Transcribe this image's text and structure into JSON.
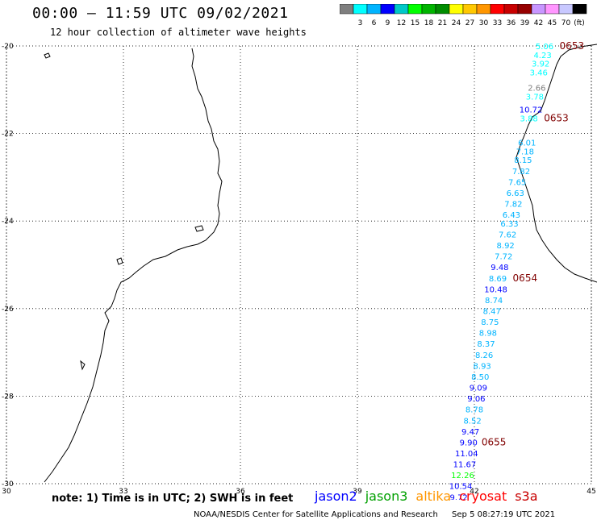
{
  "header": {
    "title": "00:00 – 11:59 UTC 09/02/2021",
    "subtitle": "12 hour collection of altimeter wave heights"
  },
  "colorbar": {
    "colors": [
      "#7f7f7f",
      "#00ffff",
      "#00b4ff",
      "#0000ff",
      "#00c8c8",
      "#00ff00",
      "#00b400",
      "#008c00",
      "#ffff00",
      "#ffc800",
      "#ff9600",
      "#ff0000",
      "#c80000",
      "#960000",
      "#c896ff",
      "#ff96ff",
      "#c8c8ff",
      "#000000"
    ],
    "labels": [
      "3",
      "6",
      "9",
      "12",
      "15",
      "18",
      "21",
      "24",
      "27",
      "30",
      "33",
      "36",
      "39",
      "42",
      "45",
      "70"
    ],
    "unit": "(ft)"
  },
  "chart_data": {
    "type": "scatter",
    "title": "00:00 – 11:59 UTC 09/02/2021",
    "subtitle": "12 hour collection of altimeter wave heights",
    "xlim": [
      30,
      45
    ],
    "ylim": [
      -30,
      -20
    ],
    "xticks": [
      "30",
      "33",
      "36",
      "39",
      "42",
      "45"
    ],
    "yticks": [
      "-20",
      "-22",
      "-24",
      "-26",
      "-28",
      "-30"
    ],
    "grid": true,
    "points": [
      {
        "lat": -20.0,
        "lon": 43.8,
        "v": "5.06",
        "c": "#00ffff"
      },
      {
        "lat": -20.2,
        "lon": 43.75,
        "v": "4.23",
        "c": "#00ffff"
      },
      {
        "lat": -20.4,
        "lon": 43.7,
        "v": "3.92",
        "c": "#00ffff"
      },
      {
        "lat": -20.6,
        "lon": 43.65,
        "v": "3.46",
        "c": "#00ffff"
      },
      {
        "lat": -20.95,
        "lon": 43.6,
        "v": "2.66",
        "c": "#7f7f7f"
      },
      {
        "lat": -21.15,
        "lon": 43.55,
        "v": "3.78",
        "c": "#00ffff"
      },
      {
        "lat": -21.45,
        "lon": 43.45,
        "v": "10.72",
        "c": "#0000ff"
      },
      {
        "lat": -21.65,
        "lon": 43.4,
        "v": "3.88",
        "c": "#00ffff"
      },
      {
        "lat": -22.2,
        "lon": 43.35,
        "v": "6.01",
        "c": "#00b4ff"
      },
      {
        "lat": -22.4,
        "lon": 43.3,
        "v": "7.18",
        "c": "#00b4ff"
      },
      {
        "lat": -22.6,
        "lon": 43.25,
        "v": "8.15",
        "c": "#00b4ff"
      },
      {
        "lat": -22.85,
        "lon": 43.2,
        "v": "7.82",
        "c": "#00b4ff"
      },
      {
        "lat": -23.1,
        "lon": 43.1,
        "v": "7.65",
        "c": "#00b4ff"
      },
      {
        "lat": -23.35,
        "lon": 43.05,
        "v": "6.63",
        "c": "#00b4ff"
      },
      {
        "lat": -23.6,
        "lon": 43.0,
        "v": "7.82",
        "c": "#00b4ff"
      },
      {
        "lat": -23.85,
        "lon": 42.95,
        "v": "6.43",
        "c": "#00b4ff"
      },
      {
        "lat": -24.05,
        "lon": 42.9,
        "v": "6.33",
        "c": "#00b4ff"
      },
      {
        "lat": -24.3,
        "lon": 42.85,
        "v": "7.62",
        "c": "#00b4ff"
      },
      {
        "lat": -24.55,
        "lon": 42.8,
        "v": "8.92",
        "c": "#00b4ff"
      },
      {
        "lat": -24.8,
        "lon": 42.75,
        "v": "7.72",
        "c": "#00b4ff"
      },
      {
        "lat": -25.05,
        "lon": 42.65,
        "v": "9.48",
        "c": "#0000ff"
      },
      {
        "lat": -25.3,
        "lon": 42.6,
        "v": "8.69",
        "c": "#00b4ff"
      },
      {
        "lat": -25.55,
        "lon": 42.55,
        "v": "10.48",
        "c": "#0000ff"
      },
      {
        "lat": -25.8,
        "lon": 42.5,
        "v": "8.74",
        "c": "#00b4ff"
      },
      {
        "lat": -26.05,
        "lon": 42.45,
        "v": "8.47",
        "c": "#00b4ff"
      },
      {
        "lat": -26.3,
        "lon": 42.4,
        "v": "8.75",
        "c": "#00b4ff"
      },
      {
        "lat": -26.55,
        "lon": 42.35,
        "v": "8.98",
        "c": "#00b4ff"
      },
      {
        "lat": -26.8,
        "lon": 42.3,
        "v": "8.37",
        "c": "#00b4ff"
      },
      {
        "lat": -27.05,
        "lon": 42.25,
        "v": "8.26",
        "c": "#00b4ff"
      },
      {
        "lat": -27.3,
        "lon": 42.2,
        "v": "8.93",
        "c": "#00b4ff"
      },
      {
        "lat": -27.55,
        "lon": 42.15,
        "v": "8.50",
        "c": "#00b4ff"
      },
      {
        "lat": -27.8,
        "lon": 42.1,
        "v": "9.09",
        "c": "#0000ff"
      },
      {
        "lat": -28.05,
        "lon": 42.05,
        "v": "9.06",
        "c": "#0000ff"
      },
      {
        "lat": -28.3,
        "lon": 42.0,
        "v": "8.78",
        "c": "#00b4ff"
      },
      {
        "lat": -28.55,
        "lon": 41.95,
        "v": "8.52",
        "c": "#00b4ff"
      },
      {
        "lat": -28.8,
        "lon": 41.9,
        "v": "9.47",
        "c": "#0000ff"
      },
      {
        "lat": -29.05,
        "lon": 41.85,
        "v": "9.90",
        "c": "#0000ff"
      },
      {
        "lat": -29.3,
        "lon": 41.8,
        "v": "11.04",
        "c": "#0000ff"
      },
      {
        "lat": -29.55,
        "lon": 41.75,
        "v": "11.67",
        "c": "#0000ff"
      },
      {
        "lat": -29.8,
        "lon": 41.7,
        "v": "12.26",
        "c": "#00ff00"
      },
      {
        "lat": -30.05,
        "lon": 41.65,
        "v": "10.54",
        "c": "#0000ff"
      },
      {
        "lat": -30.3,
        "lon": 41.6,
        "v": "9.72",
        "c": "#0000ff"
      }
    ],
    "time_labels": [
      {
        "lat": -20.0,
        "lon": 44.5,
        "t": "0653"
      },
      {
        "lat": -21.65,
        "lon": 44.1,
        "t": "0653"
      },
      {
        "lat": -25.3,
        "lon": 43.3,
        "t": "0654"
      },
      {
        "lat": -29.05,
        "lon": 42.5,
        "t": "0655"
      }
    ]
  },
  "note": "note: 1) Time is in UTC; 2) SWH is in feet",
  "satellites": [
    {
      "name": "jason2",
      "color": "#0000ff"
    },
    {
      "name": "jason3",
      "color": "#00a000"
    },
    {
      "name": "altika",
      "color": "#ff9600"
    },
    {
      "name": "cryosat",
      "color": "#ff0000"
    },
    {
      "name": "s3a",
      "color": "#c80000"
    }
  ],
  "footer": {
    "credit": "NOAA/NESDIS Center for Satellite Applications and Research",
    "timestamp": "Sep  5 08:27:19 UTC 2021"
  }
}
